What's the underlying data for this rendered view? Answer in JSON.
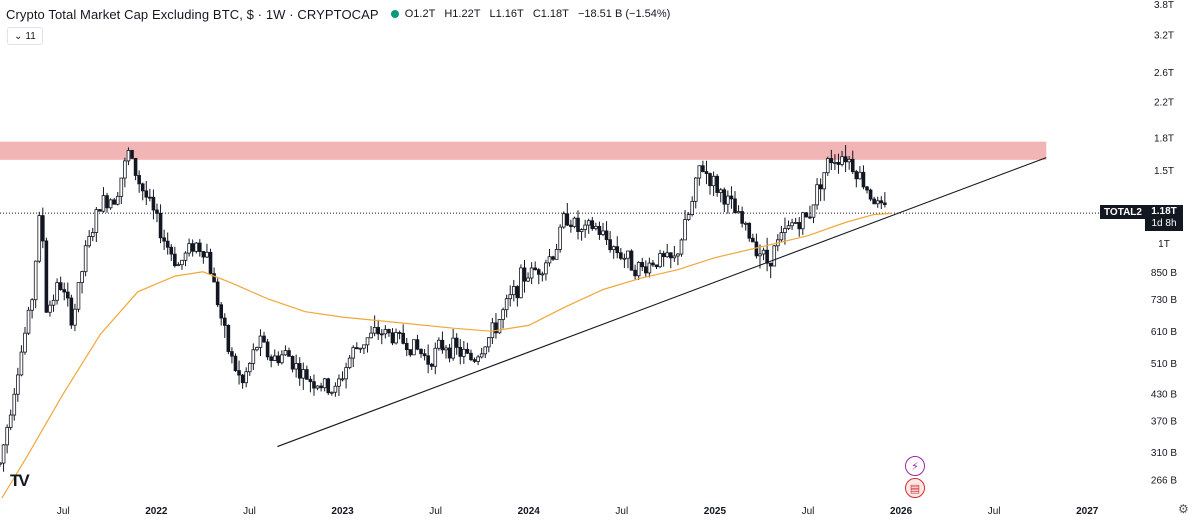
{
  "header": {
    "title": "Crypto Total Market Cap Excluding BTC, $ · 1W · CRYPTOCAP",
    "open": "O1.2T",
    "high": "H1.22T",
    "low": "L1.16T",
    "close": "C1.18T",
    "change": "−18.51 B (−1.54%)",
    "indicator_count": "11",
    "chevron": "⌄"
  },
  "price_label": {
    "symbol": "TOTAL2",
    "value": "1.18T",
    "countdown": "1d 8h"
  },
  "logo": "TV",
  "colors": {
    "up": "#ffffff",
    "down": "#131722",
    "ma": "#f0a73a",
    "resistance": "#f0a8a8",
    "trendline": "#131722",
    "accent_dot": "#089981"
  },
  "chart_data": {
    "type": "candlestick",
    "title": "Crypto Total Market Cap Excluding BTC",
    "y_scale": "log",
    "ylim": [
      240,
      3800
    ],
    "y_ticks": [
      {
        "label": "3.8T",
        "value": 3800
      },
      {
        "label": "3.2T",
        "value": 3200
      },
      {
        "label": "2.6T",
        "value": 2600
      },
      {
        "label": "2.2T",
        "value": 2200
      },
      {
        "label": "1.8T",
        "value": 1800
      },
      {
        "label": "1.5T",
        "value": 1500
      },
      {
        "label": "1T",
        "value": 1000
      },
      {
        "label": "850 B",
        "value": 850
      },
      {
        "label": "730 B",
        "value": 730
      },
      {
        "label": "610 B",
        "value": 610
      },
      {
        "label": "510 B",
        "value": 510
      },
      {
        "label": "430 B",
        "value": 430
      },
      {
        "label": "370 B",
        "value": 370
      },
      {
        "label": "310 B",
        "value": 310
      },
      {
        "label": "266 B",
        "value": 266
      }
    ],
    "x_range": [
      "2021-03",
      "2027-03"
    ],
    "x_ticks": [
      {
        "label": "Jul",
        "t": 2021.5,
        "bold": false
      },
      {
        "label": "2022",
        "t": 2022.0,
        "bold": true
      },
      {
        "label": "Jul",
        "t": 2022.5,
        "bold": false
      },
      {
        "label": "2023",
        "t": 2023.0,
        "bold": true
      },
      {
        "label": "Jul",
        "t": 2023.5,
        "bold": false
      },
      {
        "label": "2024",
        "t": 2024.0,
        "bold": true
      },
      {
        "label": "Jul",
        "t": 2024.5,
        "bold": false
      },
      {
        "label": "2025",
        "t": 2025.0,
        "bold": true
      },
      {
        "label": "Jul",
        "t": 2025.5,
        "bold": false
      },
      {
        "label": "2026",
        "t": 2026.0,
        "bold": true
      },
      {
        "label": "Jul",
        "t": 2026.5,
        "bold": false
      },
      {
        "label": "2027",
        "t": 2027.0,
        "bold": true
      }
    ],
    "price_path_anchors": [
      [
        2021.16,
        290
      ],
      [
        2021.25,
        480
      ],
      [
        2021.33,
        720
      ],
      [
        2021.38,
        1250
      ],
      [
        2021.41,
        680
      ],
      [
        2021.48,
        800
      ],
      [
        2021.55,
        650
      ],
      [
        2021.62,
        950
      ],
      [
        2021.7,
        1250
      ],
      [
        2021.78,
        1300
      ],
      [
        2021.85,
        1650
      ],
      [
        2021.9,
        1430
      ],
      [
        2021.96,
        1250
      ],
      [
        2022.05,
        1000
      ],
      [
        2022.12,
        880
      ],
      [
        2022.2,
        1000
      ],
      [
        2022.27,
        950
      ],
      [
        2022.33,
        720
      ],
      [
        2022.38,
        560
      ],
      [
        2022.46,
        450
      ],
      [
        2022.55,
        580
      ],
      [
        2022.62,
        520
      ],
      [
        2022.7,
        540
      ],
      [
        2022.78,
        480
      ],
      [
        2022.85,
        460
      ],
      [
        2022.96,
        435
      ],
      [
        2023.05,
        540
      ],
      [
        2023.12,
        580
      ],
      [
        2023.2,
        610
      ],
      [
        2023.28,
        590
      ],
      [
        2023.38,
        560
      ],
      [
        2023.46,
        520
      ],
      [
        2023.55,
        570
      ],
      [
        2023.62,
        545
      ],
      [
        2023.7,
        520
      ],
      [
        2023.8,
        600
      ],
      [
        2023.88,
        700
      ],
      [
        2023.96,
        820
      ],
      [
        2024.04,
        860
      ],
      [
        2024.14,
        950
      ],
      [
        2024.2,
        1180
      ],
      [
        2024.28,
        1050
      ],
      [
        2024.35,
        1100
      ],
      [
        2024.45,
        980
      ],
      [
        2024.52,
        920
      ],
      [
        2024.6,
        860
      ],
      [
        2024.68,
        910
      ],
      [
        2024.78,
        900
      ],
      [
        2024.88,
        1250
      ],
      [
        2024.92,
        1550
      ],
      [
        2025.0,
        1380
      ],
      [
        2025.06,
        1280
      ],
      [
        2025.14,
        1120
      ],
      [
        2025.22,
        990
      ],
      [
        2025.28,
        900
      ],
      [
        2025.34,
        1000
      ],
      [
        2025.42,
        1120
      ],
      [
        2025.5,
        1150
      ],
      [
        2025.56,
        1400
      ],
      [
        2025.62,
        1600
      ],
      [
        2025.7,
        1640
      ],
      [
        2025.76,
        1500
      ],
      [
        2025.82,
        1350
      ],
      [
        2025.88,
        1220
      ],
      [
        2025.93,
        1180
      ]
    ],
    "ma_path": [
      [
        2021.17,
        240
      ],
      [
        2021.3,
        300
      ],
      [
        2021.5,
        430
      ],
      [
        2021.7,
        600
      ],
      [
        2021.9,
        760
      ],
      [
        2022.1,
        830
      ],
      [
        2022.25,
        850
      ],
      [
        2022.4,
        800
      ],
      [
        2022.6,
        730
      ],
      [
        2022.8,
        680
      ],
      [
        2023.0,
        660
      ],
      [
        2023.3,
        640
      ],
      [
        2023.6,
        620
      ],
      [
        2023.8,
        610
      ],
      [
        2024.0,
        630
      ],
      [
        2024.2,
        700
      ],
      [
        2024.4,
        770
      ],
      [
        2024.6,
        820
      ],
      [
        2024.8,
        860
      ],
      [
        2025.0,
        920
      ],
      [
        2025.3,
        990
      ],
      [
        2025.5,
        1040
      ],
      [
        2025.7,
        1120
      ],
      [
        2025.85,
        1170
      ],
      [
        2025.95,
        1180
      ]
    ],
    "resistance_zone": {
      "t_start": 2021.08,
      "t_end": 2026.78,
      "low": 1590,
      "high": 1760
    },
    "trendline": {
      "t_start": 2022.65,
      "v_start": 320,
      "t_end": 2026.78,
      "v_end": 1610
    },
    "last_price": 1180
  }
}
